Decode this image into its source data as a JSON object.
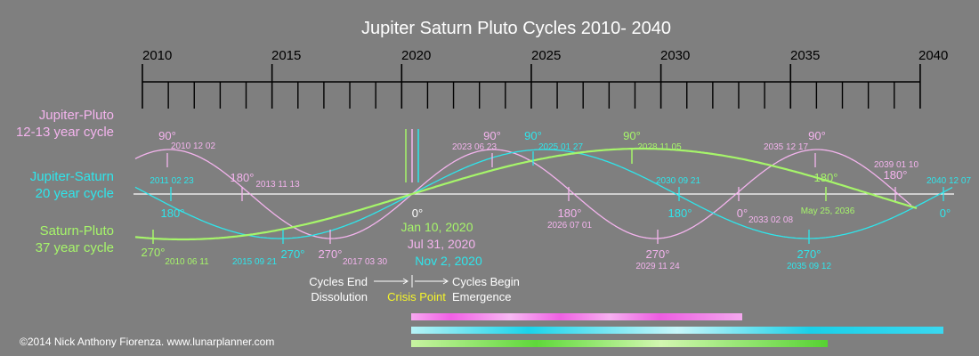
{
  "title": "Jupiter Saturn Pluto Cycles 2010- 2040",
  "colors": {
    "background": "#7f7f7f",
    "jupiter_pluto": "#f4b4ee",
    "jupiter_saturn": "#2ee6ec",
    "saturn_pluto": "#a6f56a",
    "crisis": "#f5f52a",
    "white": "#ffffff",
    "black": "#000000"
  },
  "timeline": {
    "year_labels": [
      "2010",
      "2015",
      "2020",
      "2025",
      "2030",
      "2035",
      "2040"
    ]
  },
  "cycles": {
    "jupiter_pluto": {
      "name": "Jupiter-Pluto",
      "period": "12-13 year cycle",
      "points": [
        {
          "angle": "90°",
          "date": "2010 12 02"
        },
        {
          "angle": "180°",
          "date": "2013 11 13"
        },
        {
          "angle": "270°",
          "date": "2017 03 30"
        },
        {
          "angle": "90°",
          "date": "2023 06 23"
        },
        {
          "angle": "180°",
          "date": "2026 07 01"
        },
        {
          "angle": "270°",
          "date": "2029 11 24"
        },
        {
          "angle": "0°",
          "date": "2033 02 08"
        },
        {
          "angle": "90°",
          "date": "2035 12 17"
        },
        {
          "angle": "180°",
          "date": "2039 01 10"
        }
      ]
    },
    "jupiter_saturn": {
      "name": "Jupiter-Saturn",
      "period": "20 year cycle",
      "points": [
        {
          "angle": "",
          "date": "2011 02 23"
        },
        {
          "angle": "180°",
          "date": ""
        },
        {
          "angle": "270°",
          "date": "2015 09 21"
        },
        {
          "angle": "90°",
          "date": "2025 01 27"
        },
        {
          "angle": "180°",
          "date": "2030 09 21"
        },
        {
          "angle": "270°",
          "date": "2035 09 12"
        },
        {
          "angle": "0°",
          "date": "2040 12 07"
        }
      ]
    },
    "saturn_pluto": {
      "name": "Saturn-Pluto",
      "period": "37 year cycle",
      "points": [
        {
          "angle": "270°",
          "date": "2010 06 11"
        },
        {
          "angle": "90°",
          "date": "2028 11 05"
        },
        {
          "angle": "180°",
          "date": "May 25, 2036"
        }
      ]
    }
  },
  "conjunction": {
    "angle": "0°",
    "dates": [
      "Jan 10, 2020",
      "Jul 31, 2020",
      "Nov 2, 2020"
    ]
  },
  "phases": {
    "end_line1": "Cycles End",
    "end_line2": "Dissolution",
    "crisis": "Crisis Point",
    "begin_line1": "Cycles Begin",
    "begin_line2": "Emergence"
  },
  "footer": "©2014 Nick Anthony Fiorenza. www.lunarplanner.com"
}
